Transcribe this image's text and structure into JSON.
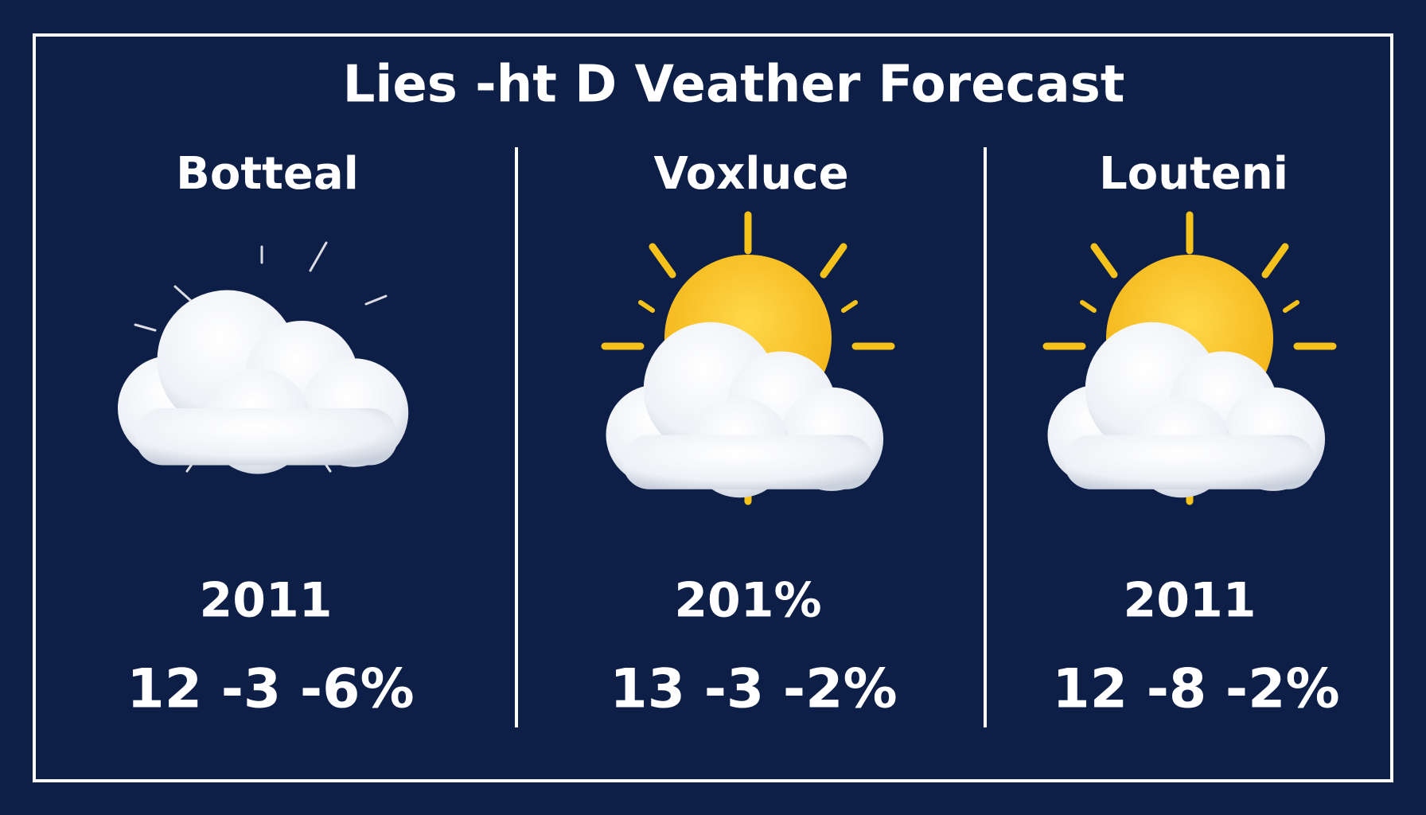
{
  "header": {
    "title": "Lies -ht D Veather Forecast"
  },
  "columns": [
    {
      "city": "Botteal",
      "year": "2011",
      "stats": "12 -3 -6%"
    },
    {
      "city": "Voxluce",
      "year": "201%",
      "stats": "13 -3 -2%"
    },
    {
      "city": "Louteni",
      "year": "2011",
      "stats": "12 -8 -2%"
    }
  ]
}
